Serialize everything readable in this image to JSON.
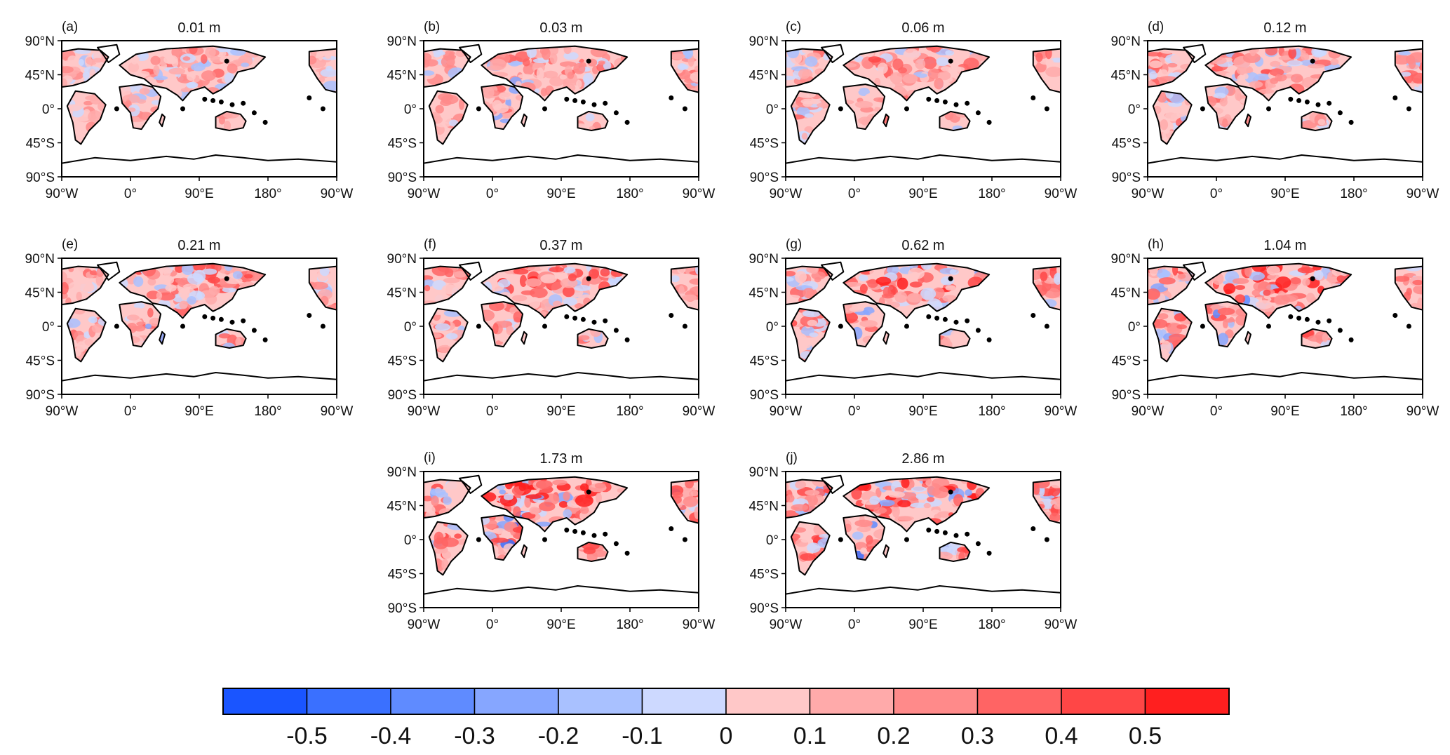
{
  "figure": {
    "panels": [
      {
        "letter": "(a)",
        "title": "0.01 m",
        "intensity": 0.3
      },
      {
        "letter": "(b)",
        "title": "0.03 m",
        "intensity": 0.35
      },
      {
        "letter": "(c)",
        "title": "0.06 m",
        "intensity": 0.4
      },
      {
        "letter": "(d)",
        "title": "0.12 m",
        "intensity": 0.45
      },
      {
        "letter": "(e)",
        "title": "0.21 m",
        "intensity": 0.55
      },
      {
        "letter": "(f)",
        "title": "0.37 m",
        "intensity": 0.62
      },
      {
        "letter": "(g)",
        "title": "0.62 m",
        "intensity": 0.7
      },
      {
        "letter": "(h)",
        "title": "1.04 m",
        "intensity": 0.78
      },
      {
        "letter": "(i)",
        "title": "1.73 m",
        "intensity": 0.9
      },
      {
        "letter": "(j)",
        "title": "2.86 m",
        "intensity": 0.95
      }
    ],
    "lat_ticks": [
      "90°N",
      "45°N",
      "0°",
      "45°S",
      "90°S"
    ],
    "lon_ticks": [
      "90°W",
      "0°",
      "90°E",
      "180°",
      "90°W"
    ],
    "colorbar": {
      "colors": [
        "#1a55ff",
        "#3a70ff",
        "#5f8bff",
        "#86a6ff",
        "#a9c1ff",
        "#cdd9ff",
        "#ffc8c8",
        "#ffaaaa",
        "#ff8a8a",
        "#ff6464",
        "#ff4646",
        "#ff1f1f"
      ],
      "labels": [
        "-0.5",
        "-0.4",
        "-0.3",
        "-0.2",
        "-0.1",
        "0",
        "0.1",
        "0.2",
        "0.3",
        "0.4",
        "0.5"
      ]
    }
  }
}
